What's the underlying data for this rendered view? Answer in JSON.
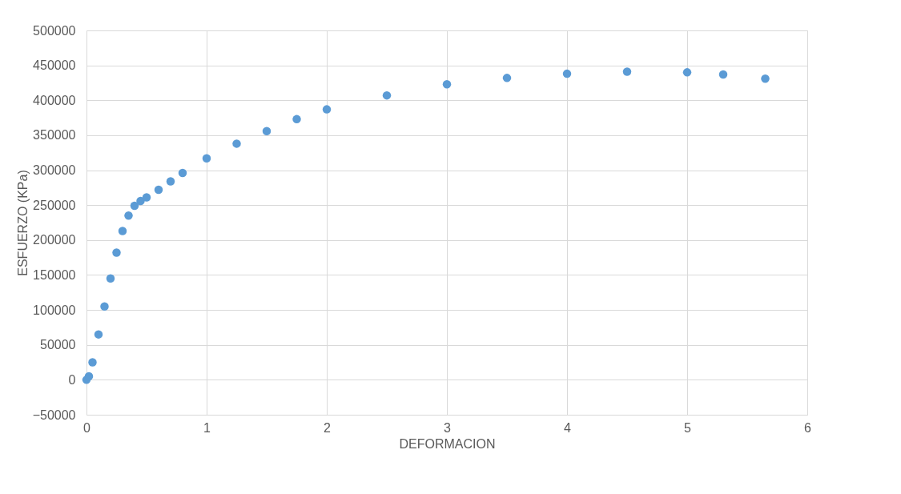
{
  "chart_data": {
    "type": "scatter",
    "xlabel": "DEFORMACION",
    "ylabel": "ESFUERZO  (KPa)",
    "xlim": [
      0,
      6
    ],
    "xticks": [
      0,
      1,
      2,
      3,
      4,
      5,
      6
    ],
    "ylim": [
      -50000,
      500000
    ],
    "yticks": [
      -50000,
      0,
      50000,
      100000,
      150000,
      200000,
      250000,
      300000,
      350000,
      400000,
      450000,
      500000
    ],
    "grid": true,
    "marker": "circle",
    "series": [
      {
        "color": "#5b9bd5",
        "x": [
          0,
          0.02,
          0.05,
          0.1,
          0.15,
          0.2,
          0.25,
          0.3,
          0.35,
          0.4,
          0.45,
          0.5,
          0.6,
          0.7,
          0.8,
          1.0,
          1.25,
          1.5,
          1.75,
          2.0,
          2.5,
          3.0,
          3.5,
          4.0,
          4.5,
          5.0,
          5.3,
          5.65
        ],
        "values": [
          0,
          5000,
          25000,
          65000,
          105000,
          145000,
          182000,
          213000,
          235000,
          249000,
          256000,
          261000,
          272000,
          284000,
          296000,
          317000,
          338000,
          356000,
          373000,
          387000,
          407000,
          423000,
          432000,
          438000,
          441000,
          440000,
          437000,
          431000
        ]
      }
    ]
  }
}
